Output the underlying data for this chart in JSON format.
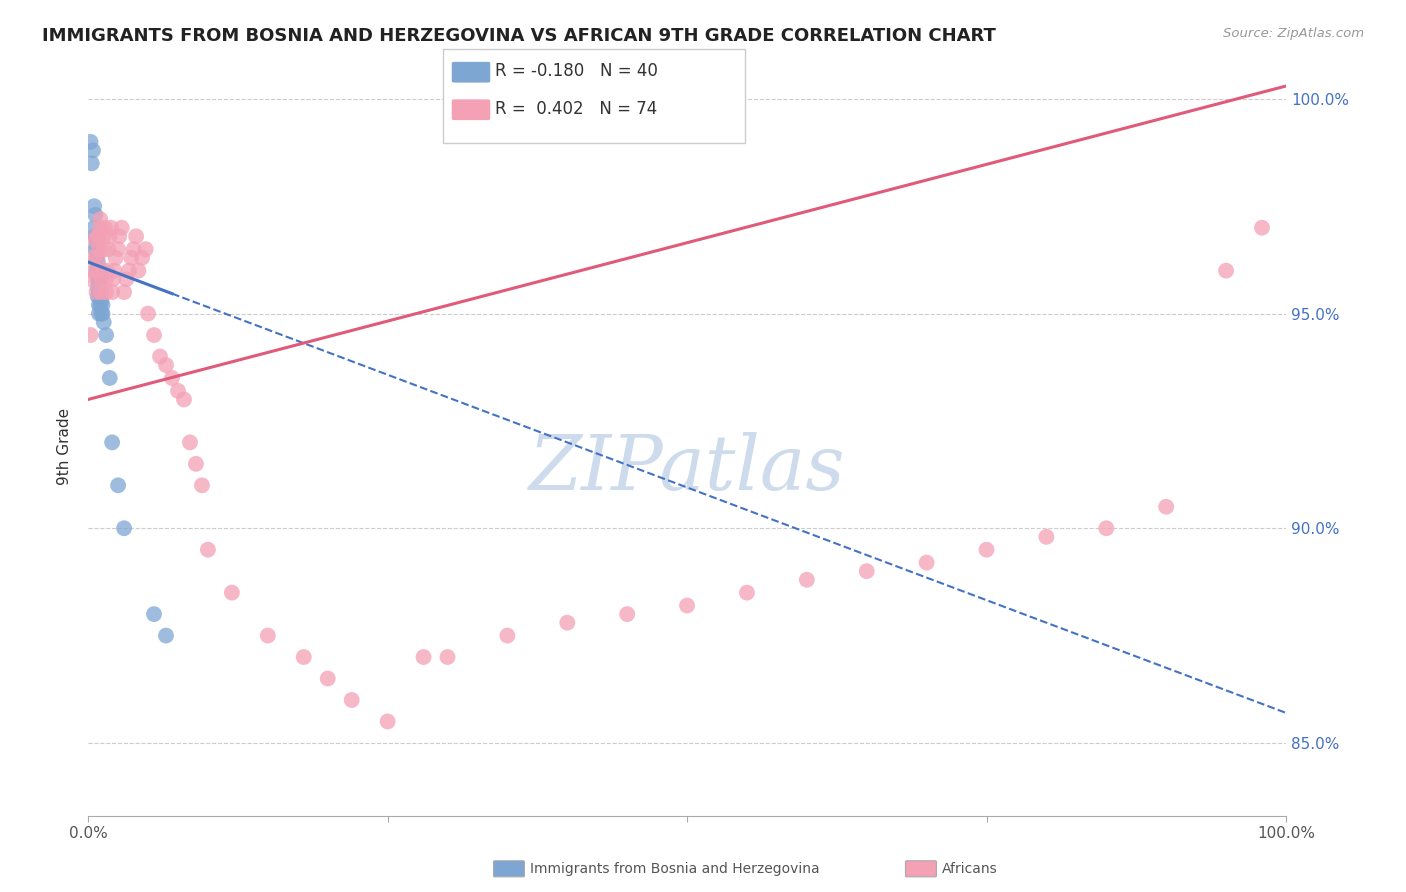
{
  "title": "IMMIGRANTS FROM BOSNIA AND HERZEGOVINA VS AFRICAN 9TH GRADE CORRELATION CHART",
  "source": "Source: ZipAtlas.com",
  "ylabel": "9th Grade",
  "legend_blue_r": "R = -0.180",
  "legend_blue_n": "N = 40",
  "legend_pink_r": "R =  0.402",
  "legend_pink_n": "N = 74",
  "blue_color": "#7ea6d3",
  "pink_color": "#f4a0b5",
  "blue_line_color": "#4472c4",
  "pink_line_color": "#e05a7a",
  "watermark_color": "#c8d8ea",
  "blue_points_x": [
    0.002,
    0.003,
    0.004,
    0.005,
    0.005,
    0.006,
    0.006,
    0.006,
    0.007,
    0.007,
    0.007,
    0.007,
    0.008,
    0.008,
    0.008,
    0.008,
    0.008,
    0.009,
    0.009,
    0.009,
    0.009,
    0.01,
    0.01,
    0.01,
    0.01,
    0.01,
    0.011,
    0.011,
    0.011,
    0.012,
    0.012,
    0.013,
    0.015,
    0.016,
    0.018,
    0.02,
    0.025,
    0.03,
    0.055,
    0.065
  ],
  "blue_points_y": [
    0.99,
    0.985,
    0.988,
    0.975,
    0.97,
    0.973,
    0.968,
    0.965,
    0.968,
    0.966,
    0.963,
    0.96,
    0.962,
    0.96,
    0.958,
    0.956,
    0.954,
    0.958,
    0.955,
    0.952,
    0.95,
    0.96,
    0.958,
    0.956,
    0.954,
    0.952,
    0.955,
    0.953,
    0.95,
    0.952,
    0.95,
    0.948,
    0.945,
    0.94,
    0.935,
    0.92,
    0.91,
    0.9,
    0.88,
    0.875
  ],
  "pink_points_x": [
    0.002,
    0.003,
    0.004,
    0.005,
    0.006,
    0.007,
    0.007,
    0.008,
    0.008,
    0.009,
    0.009,
    0.01,
    0.01,
    0.011,
    0.011,
    0.012,
    0.013,
    0.013,
    0.014,
    0.015,
    0.015,
    0.016,
    0.017,
    0.018,
    0.019,
    0.02,
    0.021,
    0.022,
    0.023,
    0.025,
    0.026,
    0.028,
    0.03,
    0.032,
    0.034,
    0.036,
    0.038,
    0.04,
    0.042,
    0.045,
    0.048,
    0.05,
    0.055,
    0.06,
    0.065,
    0.07,
    0.075,
    0.08,
    0.085,
    0.09,
    0.095,
    0.1,
    0.12,
    0.15,
    0.18,
    0.2,
    0.22,
    0.25,
    0.28,
    0.3,
    0.35,
    0.4,
    0.45,
    0.5,
    0.55,
    0.6,
    0.65,
    0.7,
    0.75,
    0.8,
    0.85,
    0.9,
    0.95,
    0.98
  ],
  "pink_points_y": [
    0.945,
    0.958,
    0.96,
    0.963,
    0.967,
    0.955,
    0.968,
    0.96,
    0.963,
    0.965,
    0.968,
    0.97,
    0.972,
    0.955,
    0.958,
    0.96,
    0.965,
    0.968,
    0.97,
    0.955,
    0.958,
    0.96,
    0.965,
    0.968,
    0.97,
    0.955,
    0.958,
    0.96,
    0.963,
    0.965,
    0.968,
    0.97,
    0.955,
    0.958,
    0.96,
    0.963,
    0.965,
    0.968,
    0.96,
    0.963,
    0.965,
    0.95,
    0.945,
    0.94,
    0.938,
    0.935,
    0.932,
    0.93,
    0.92,
    0.915,
    0.91,
    0.895,
    0.885,
    0.875,
    0.87,
    0.865,
    0.86,
    0.855,
    0.87,
    0.87,
    0.875,
    0.878,
    0.88,
    0.882,
    0.885,
    0.888,
    0.89,
    0.892,
    0.895,
    0.898,
    0.9,
    0.905,
    0.96,
    0.97
  ],
  "xlim": [
    0.0,
    1.0
  ],
  "ylim": [
    0.833,
    1.005
  ]
}
